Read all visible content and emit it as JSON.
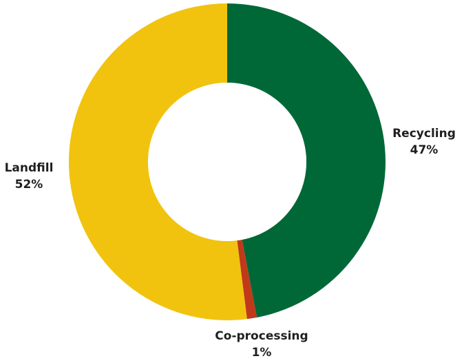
{
  "chart_data": {
    "type": "pie",
    "donut": true,
    "title": "",
    "slices": [
      {
        "name": "Recycling",
        "label": "Recycling",
        "value": 47,
        "value_label": "47%",
        "color": "#006837"
      },
      {
        "name": "Co-processing",
        "label": "Co-processing",
        "value": 1,
        "value_label": "1%",
        "color": "#c0391b"
      },
      {
        "name": "Landfill",
        "label": "Landfill",
        "value": 52,
        "value_label": "52%",
        "color": "#f1c30e"
      }
    ],
    "start": "12 o'clock",
    "direction": "clockwise",
    "legend": "none"
  }
}
